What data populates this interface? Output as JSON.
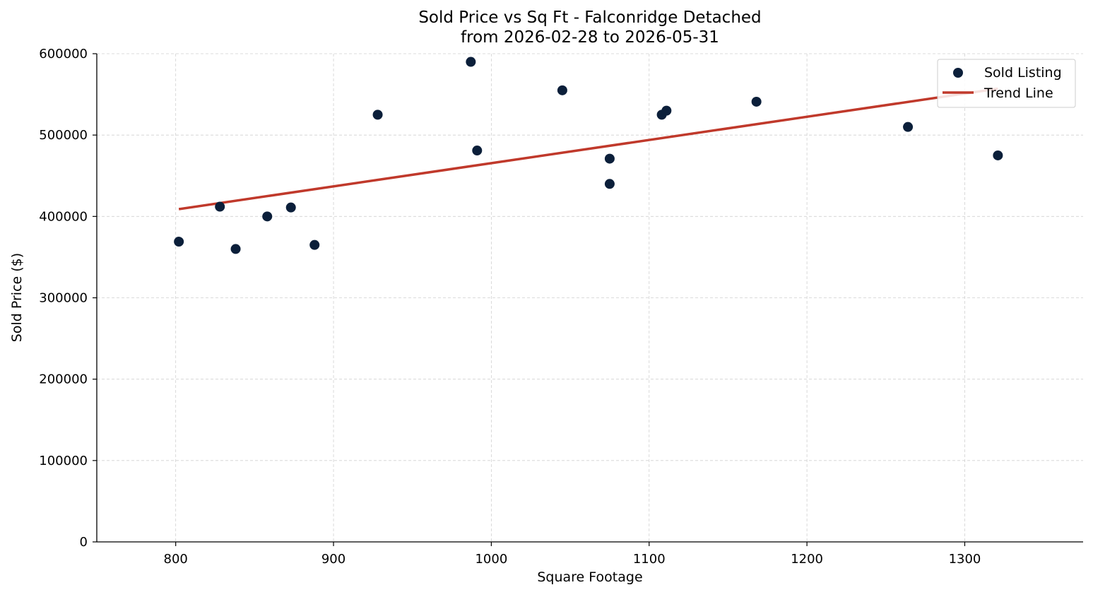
{
  "chart_data": {
    "type": "scatter",
    "title": "Sold Price vs Sq Ft - Falconridge Detached",
    "subtitle": "from 2026-02-28 to 2026-05-31",
    "xlabel": "Square Footage",
    "ylabel": "Sold Price ($)",
    "xlim": [
      750,
      1375
    ],
    "ylim": [
      0,
      600000
    ],
    "xticks": [
      800,
      900,
      1000,
      1100,
      1200,
      1300
    ],
    "yticks": [
      0,
      100000,
      200000,
      300000,
      400000,
      500000,
      600000
    ],
    "grid": true,
    "legend_position": "top-right",
    "series": [
      {
        "name": "Sold Listing",
        "kind": "scatter",
        "color": "#0b1f3a",
        "points": [
          {
            "x": 802,
            "y": 369000
          },
          {
            "x": 828,
            "y": 412000
          },
          {
            "x": 838,
            "y": 360000
          },
          {
            "x": 858,
            "y": 400000
          },
          {
            "x": 873,
            "y": 411000
          },
          {
            "x": 888,
            "y": 365000
          },
          {
            "x": 928,
            "y": 525000
          },
          {
            "x": 987,
            "y": 590000
          },
          {
            "x": 991,
            "y": 481000
          },
          {
            "x": 1045,
            "y": 555000
          },
          {
            "x": 1075,
            "y": 471000
          },
          {
            "x": 1075,
            "y": 440000
          },
          {
            "x": 1108,
            "y": 525000
          },
          {
            "x": 1111,
            "y": 530000
          },
          {
            "x": 1168,
            "y": 541000
          },
          {
            "x": 1264,
            "y": 510000
          },
          {
            "x": 1321,
            "y": 475000
          }
        ]
      },
      {
        "name": "Trend Line",
        "kind": "line",
        "color": "#c0392b",
        "points": [
          {
            "x": 802,
            "y": 409000
          },
          {
            "x": 1321,
            "y": 557000
          }
        ]
      }
    ]
  }
}
